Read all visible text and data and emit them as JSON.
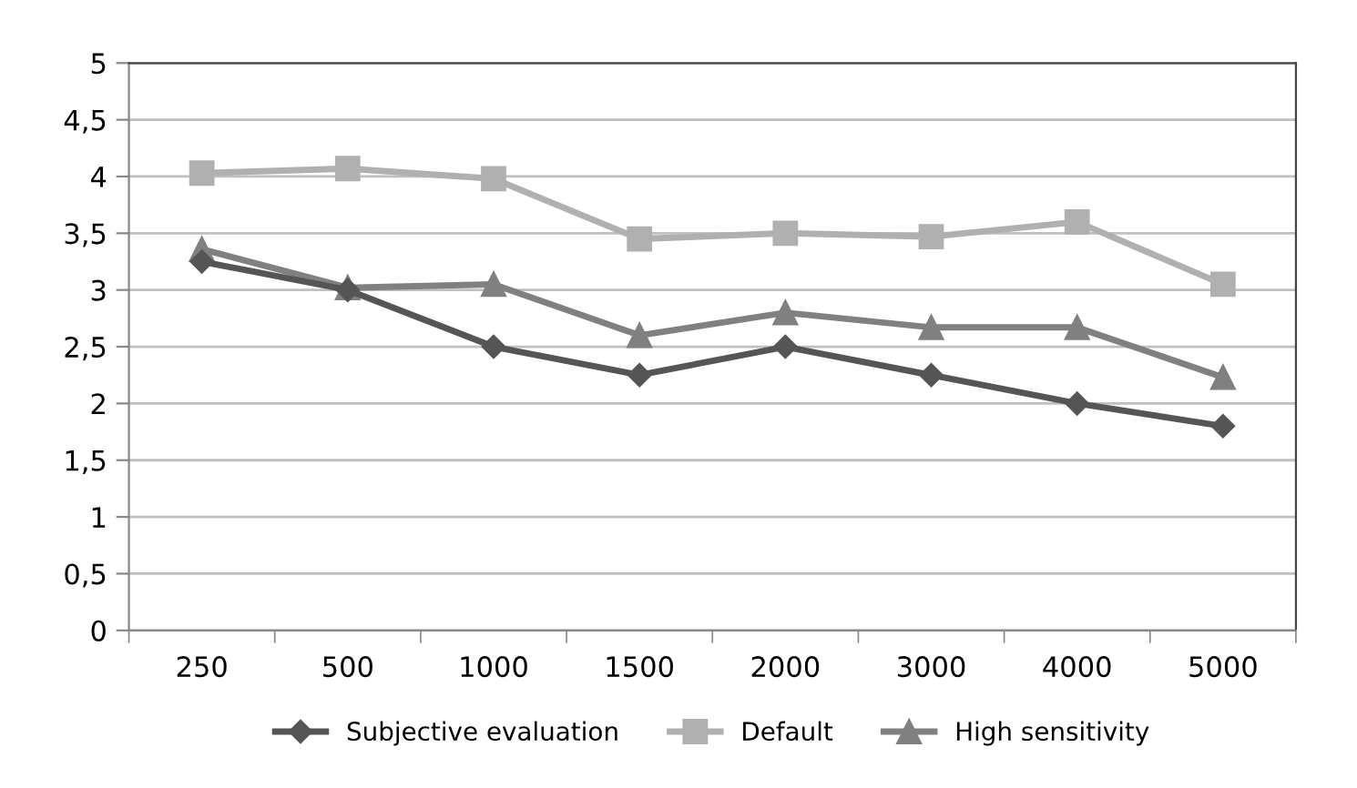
{
  "chart_data": {
    "type": "line",
    "categories": [
      "250",
      "500",
      "1000",
      "1500",
      "2000",
      "3000",
      "4000",
      "5000"
    ],
    "series": [
      {
        "name": "Subjective evaluation",
        "color": "#555555",
        "marker": "diamond",
        "values": [
          3.25,
          3.0,
          2.5,
          2.25,
          2.5,
          2.25,
          2.0,
          1.8
        ]
      },
      {
        "name": "Default",
        "color": "#b0b0b0",
        "marker": "square",
        "values": [
          4.03,
          4.07,
          3.98,
          3.45,
          3.5,
          3.47,
          3.6,
          3.05
        ]
      },
      {
        "name": "High sensitivity",
        "color": "#808080",
        "marker": "triangle",
        "values": [
          3.36,
          3.02,
          3.05,
          2.6,
          2.8,
          2.67,
          2.67,
          2.23
        ]
      }
    ],
    "ylim": [
      0,
      5
    ],
    "yticks": [
      0,
      {
        "value": 0.5,
        "label": "0,5"
      },
      1,
      {
        "value": 1.5,
        "label": "1,5"
      },
      2,
      {
        "value": 2.5,
        "label": "2,5"
      },
      3,
      {
        "value": 3.5,
        "label": "3,5"
      },
      4,
      {
        "value": 4.5,
        "label": "4,5"
      },
      5
    ],
    "grid": "y",
    "legend": "bottom",
    "line_style": "solid"
  }
}
